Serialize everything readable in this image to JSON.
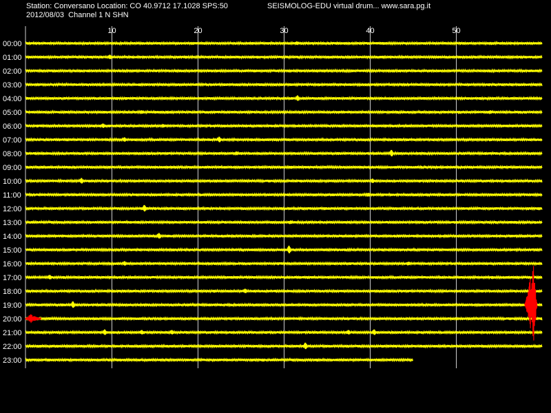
{
  "header": {
    "station_line": "Station: Conversano Location: CO 40.9712 17.1028 SPS:50",
    "app_line": "SEISMOLOG-EDU virtual drum... www.sara.pg.it",
    "date_line": "2012/08/03  Channel 1 N SHN"
  },
  "colors": {
    "background": "#000000",
    "trace": "#ffff00",
    "event": "#ff0000",
    "grid": "#d0d0d0",
    "text": "#ffffff"
  },
  "chart_data": {
    "type": "line",
    "title": "",
    "xlabel": "",
    "ylabel": "",
    "xlim": [
      0,
      60
    ],
    "x_ticks": [
      10,
      20,
      30,
      40,
      50
    ],
    "x_tick_labels": [
      "10",
      "20",
      "30",
      "40",
      "50"
    ],
    "grid": true,
    "rows": [
      "00:00",
      "01:00",
      "02:00",
      "03:00",
      "04:00",
      "05:00",
      "06:00",
      "07:00",
      "08:00",
      "09:00",
      "10:00",
      "11:00",
      "12:00",
      "13:00",
      "14:00",
      "15:00",
      "16:00",
      "17:00",
      "18:00",
      "19:00",
      "20:00",
      "21:00",
      "22:00",
      "23:00"
    ],
    "last_row_end_minute": 45,
    "spikes": [
      {
        "row": 0,
        "minute": 31.5,
        "amplitude": 3
      },
      {
        "row": 1,
        "minute": 9.8,
        "amplitude": 4
      },
      {
        "row": 4,
        "minute": 31.6,
        "amplitude": 5
      },
      {
        "row": 5,
        "minute": 13.5,
        "amplitude": 3
      },
      {
        "row": 5,
        "minute": 54.0,
        "amplitude": 3
      },
      {
        "row": 6,
        "minute": 9.0,
        "amplitude": 4
      },
      {
        "row": 6,
        "minute": 16.0,
        "amplitude": 3
      },
      {
        "row": 7,
        "minute": 11.5,
        "amplitude": 4
      },
      {
        "row": 7,
        "minute": 22.5,
        "amplitude": 5
      },
      {
        "row": 8,
        "minute": 42.5,
        "amplitude": 6
      },
      {
        "row": 8,
        "minute": 24.5,
        "amplitude": 3
      },
      {
        "row": 10,
        "minute": 6.5,
        "amplitude": 5
      },
      {
        "row": 10,
        "minute": 40.3,
        "amplitude": 4
      },
      {
        "row": 11,
        "minute": 39.8,
        "amplitude": 3
      },
      {
        "row": 12,
        "minute": 13.8,
        "amplitude": 6
      },
      {
        "row": 13,
        "minute": 30.8,
        "amplitude": 3
      },
      {
        "row": 14,
        "minute": 15.5,
        "amplitude": 5
      },
      {
        "row": 15,
        "minute": 30.6,
        "amplitude": 7
      },
      {
        "row": 16,
        "minute": 11.5,
        "amplitude": 4
      },
      {
        "row": 16,
        "minute": 44.5,
        "amplitude": 3
      },
      {
        "row": 17,
        "minute": 2.8,
        "amplitude": 4
      },
      {
        "row": 18,
        "minute": 25.5,
        "amplitude": 4
      },
      {
        "row": 19,
        "minute": 5.5,
        "amplitude": 6
      },
      {
        "row": 21,
        "minute": 9.2,
        "amplitude": 5
      },
      {
        "row": 21,
        "minute": 13.5,
        "amplitude": 4
      },
      {
        "row": 21,
        "minute": 17.0,
        "amplitude": 4
      },
      {
        "row": 21,
        "minute": 37.5,
        "amplitude": 4
      },
      {
        "row": 21,
        "minute": 40.5,
        "amplitude": 5
      },
      {
        "row": 22,
        "minute": 32.5,
        "amplitude": 6
      }
    ],
    "events": [
      {
        "row": 20,
        "start_minute": 0.0,
        "end_minute": 1.8,
        "amplitude": 7
      },
      {
        "row": 19,
        "start_minute": 58.0,
        "end_minute": 59.4,
        "amplitude": 62,
        "peak_minute": 59.0
      }
    ]
  }
}
